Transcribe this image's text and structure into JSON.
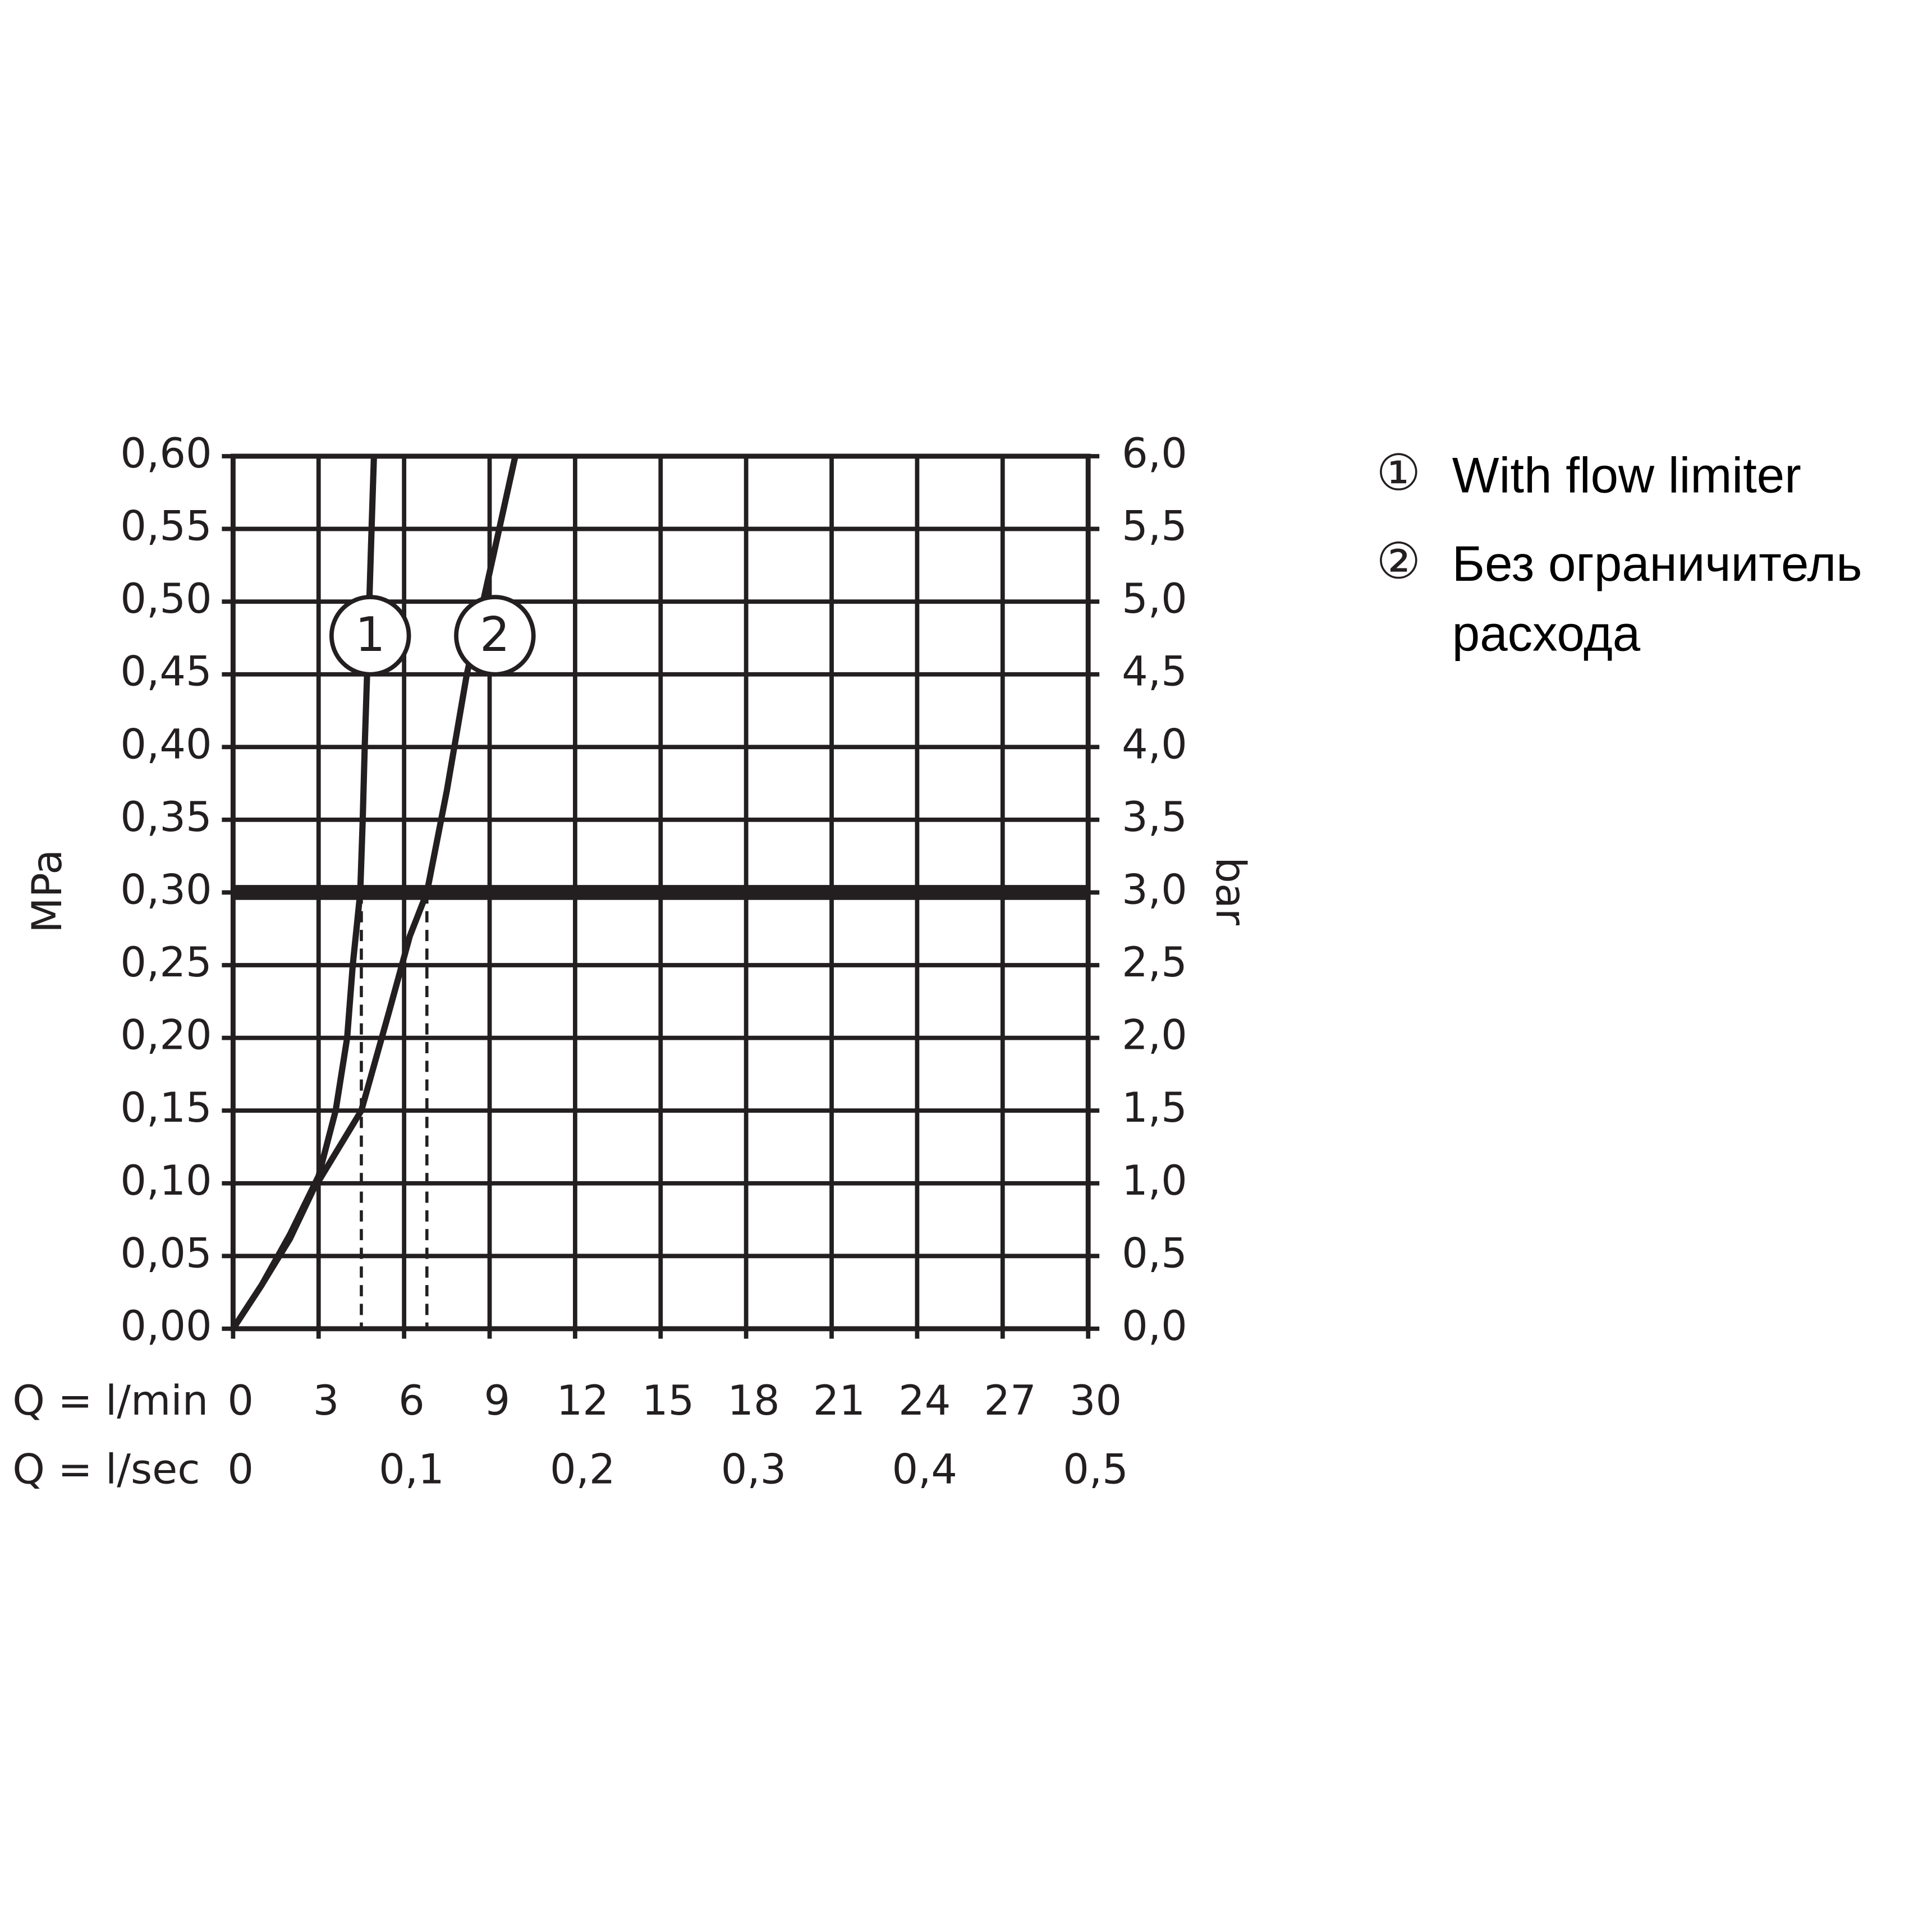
{
  "chart_data": {
    "type": "line",
    "x_label": "Q = l/min",
    "x2_label": "Q = l/sec",
    "y_label": "MPa",
    "y2_label": "bar",
    "xlim": [
      0,
      30
    ],
    "xticks": [
      0,
      3,
      6,
      9,
      12,
      15,
      18,
      21,
      24,
      27,
      30
    ],
    "x2lim": [
      0,
      0.5
    ],
    "x2ticks": [
      0,
      {
        "value": 0.1,
        "label": "0,1"
      },
      {
        "value": 0.2,
        "label": "0,2"
      },
      {
        "value": 0.3,
        "label": "0,3"
      },
      {
        "value": 0.4,
        "label": "0,4"
      },
      {
        "value": 0.5,
        "label": "0,5"
      }
    ],
    "ylim": [
      0,
      0.6
    ],
    "yticks": [
      {
        "value": 0,
        "label": "0,00"
      },
      {
        "value": 0.05,
        "label": "0,05"
      },
      {
        "value": 0.1,
        "label": "0,10"
      },
      {
        "value": 0.15,
        "label": "0,15"
      },
      {
        "value": 0.2,
        "label": "0,20"
      },
      {
        "value": 0.25,
        "label": "0,25"
      },
      {
        "value": 0.3,
        "label": "0,30"
      },
      {
        "value": 0.35,
        "label": "0,35"
      },
      {
        "value": 0.4,
        "label": "0,40"
      },
      {
        "value": 0.45,
        "label": "0,45"
      },
      {
        "value": 0.5,
        "label": "0,50"
      },
      {
        "value": 0.55,
        "label": "0,55"
      },
      {
        "value": 0.6,
        "label": "0,60"
      }
    ],
    "y2lim": [
      0,
      6
    ],
    "y2ticks": [
      {
        "value": 0,
        "label": "0,0"
      },
      {
        "value": 0.5,
        "label": "0,5"
      },
      {
        "value": 1,
        "label": "1,0"
      },
      {
        "value": 1.5,
        "label": "1,5"
      },
      {
        "value": 2,
        "label": "2,0"
      },
      {
        "value": 2.5,
        "label": "2,5"
      },
      {
        "value": 3,
        "label": "3,0"
      },
      {
        "value": 3.5,
        "label": "3,5"
      },
      {
        "value": 4,
        "label": "4,0"
      },
      {
        "value": 4.5,
        "label": "4,5"
      },
      {
        "value": 5,
        "label": "5,0"
      },
      {
        "value": 5.5,
        "label": "5,5"
      },
      {
        "value": 6,
        "label": "6,0"
      }
    ],
    "grid": true,
    "reference_y": 0.3,
    "series": [
      {
        "name": "With flow limiter",
        "marker": "1",
        "legend_symbol": "①",
        "color": "#231f20",
        "x": [
          0,
          1,
          2,
          3,
          3.6,
          4.0,
          4.2,
          4.46,
          4.55,
          4.62,
          4.7,
          4.78,
          4.86,
          4.94
        ],
        "values": [
          0,
          0.03,
          0.065,
          0.105,
          0.15,
          0.2,
          0.25,
          0.3,
          0.35,
          0.4,
          0.45,
          0.5,
          0.55,
          0.6
        ],
        "flow_at_reference": 4.5
      },
      {
        "name": "Без ограничитель расхода",
        "marker": "2",
        "legend_symbol": "②",
        "color": "#231f20",
        "x": [
          0,
          1,
          2,
          2.8,
          4.5,
          5.5,
          6.2,
          6.8,
          7.5,
          8.2,
          9.0,
          9.9
        ],
        "values": [
          0,
          0.03,
          0.062,
          0.095,
          0.15,
          0.22,
          0.27,
          0.3,
          0.37,
          0.45,
          0.52,
          0.6
        ],
        "flow_at_reference": 6.8
      }
    ]
  }
}
